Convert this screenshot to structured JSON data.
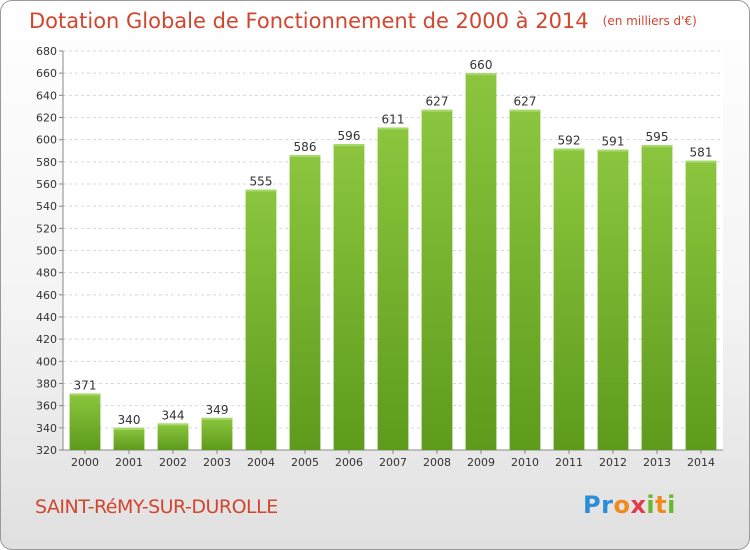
{
  "chart_data": {
    "type": "bar",
    "title": "Dotation Globale de Fonctionnement de 2000 à 2014",
    "unit_note": "(en milliers d'€)",
    "categories": [
      "2000",
      "2001",
      "2002",
      "2003",
      "2004",
      "2005",
      "2006",
      "2007",
      "2008",
      "2009",
      "2010",
      "2011",
      "2012",
      "2013",
      "2014"
    ],
    "values": [
      371,
      340,
      344,
      349,
      555,
      586,
      596,
      611,
      627,
      660,
      627,
      592,
      591,
      595,
      581
    ],
    "ylim": [
      320,
      680
    ],
    "yticks": [
      320,
      340,
      360,
      380,
      400,
      420,
      440,
      460,
      480,
      500,
      520,
      540,
      560,
      580,
      600,
      620,
      640,
      660,
      680
    ],
    "grid": true,
    "bar_color": "#8cc63f",
    "bar_color_dark": "#5e9b1c"
  },
  "commune": "SAINT-RéMY-SUR-DUROLLE",
  "logo": {
    "text": "Proxiti",
    "colors": [
      "#2a8fd8",
      "#f08a1c",
      "#6bb82a",
      "#e23b4b"
    ]
  },
  "colors": {
    "accent": "#d2452f"
  }
}
